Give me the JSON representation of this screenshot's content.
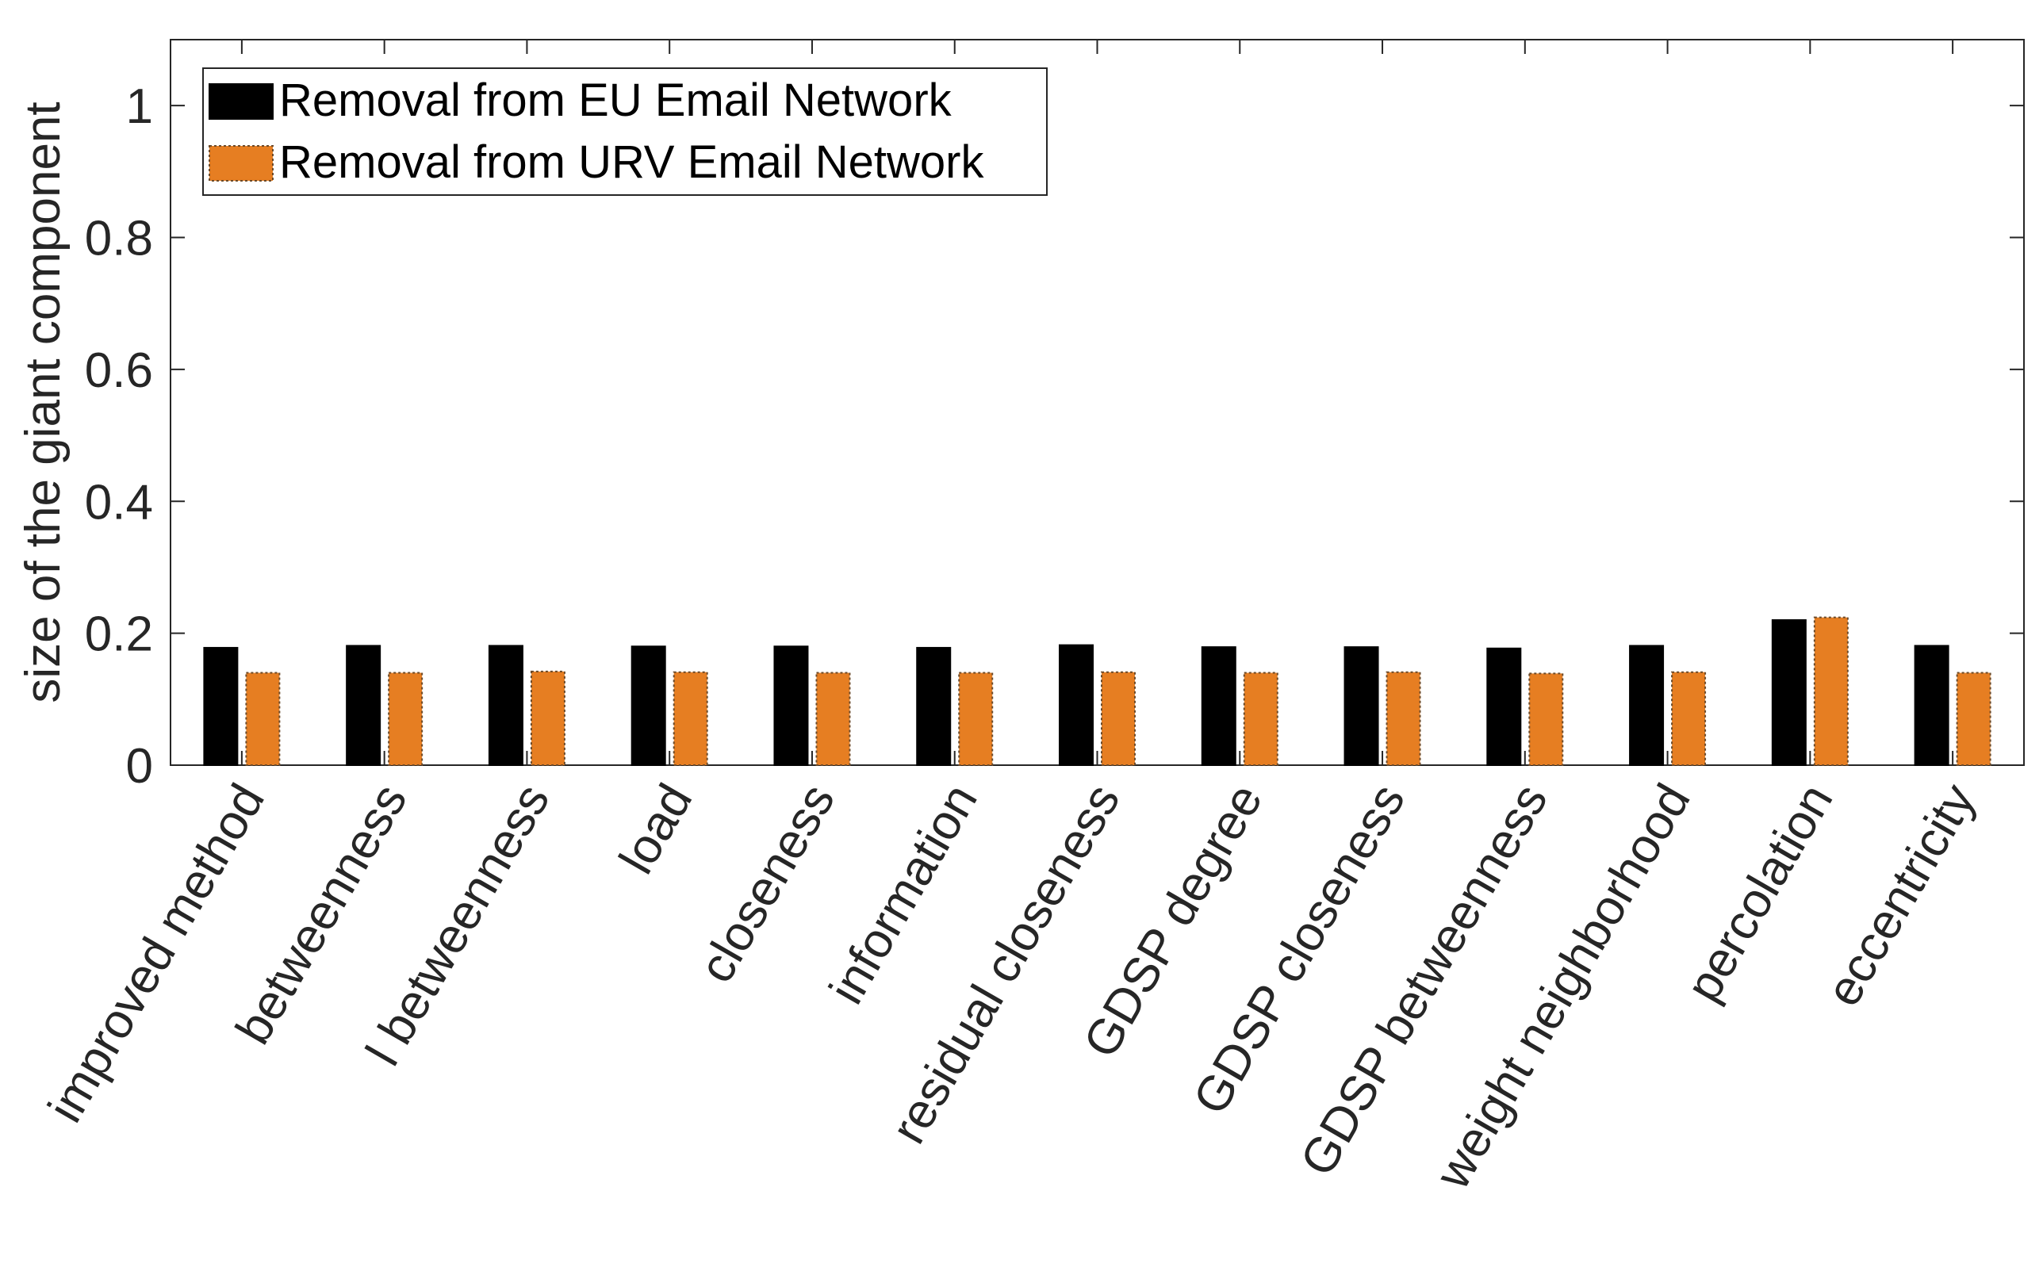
{
  "chart_data": {
    "type": "bar",
    "ylabel": "size of the giant component",
    "xlabel": "",
    "ylim": [
      0,
      1.1
    ],
    "yticks": [
      "0",
      "0.2",
      "0.4",
      "0.6",
      "0.8",
      "1"
    ],
    "ytick_values": [
      0,
      0.2,
      0.4,
      0.6,
      0.8,
      1
    ],
    "grid": false,
    "legend_position": "top-left",
    "categories": [
      "improved method",
      "betweenness",
      "l betweenness",
      "load",
      "closeness",
      "information",
      "residual closeness",
      "GDSP degree",
      "GDSP closeness",
      "GDSP betweenness",
      "weight neighborhood",
      "percolation",
      "eccentricity"
    ],
    "series": [
      {
        "name": "Removal from EU Email Network",
        "color": "#000000",
        "values": [
          0.178,
          0.181,
          0.181,
          0.18,
          0.18,
          0.178,
          0.182,
          0.179,
          0.179,
          0.177,
          0.181,
          0.22,
          0.181
        ]
      },
      {
        "name": "Removal from URV Email Network",
        "color": "#E67E22",
        "values": [
          0.14,
          0.14,
          0.142,
          0.141,
          0.14,
          0.14,
          0.141,
          0.14,
          0.141,
          0.139,
          0.141,
          0.224,
          0.14
        ]
      }
    ]
  }
}
